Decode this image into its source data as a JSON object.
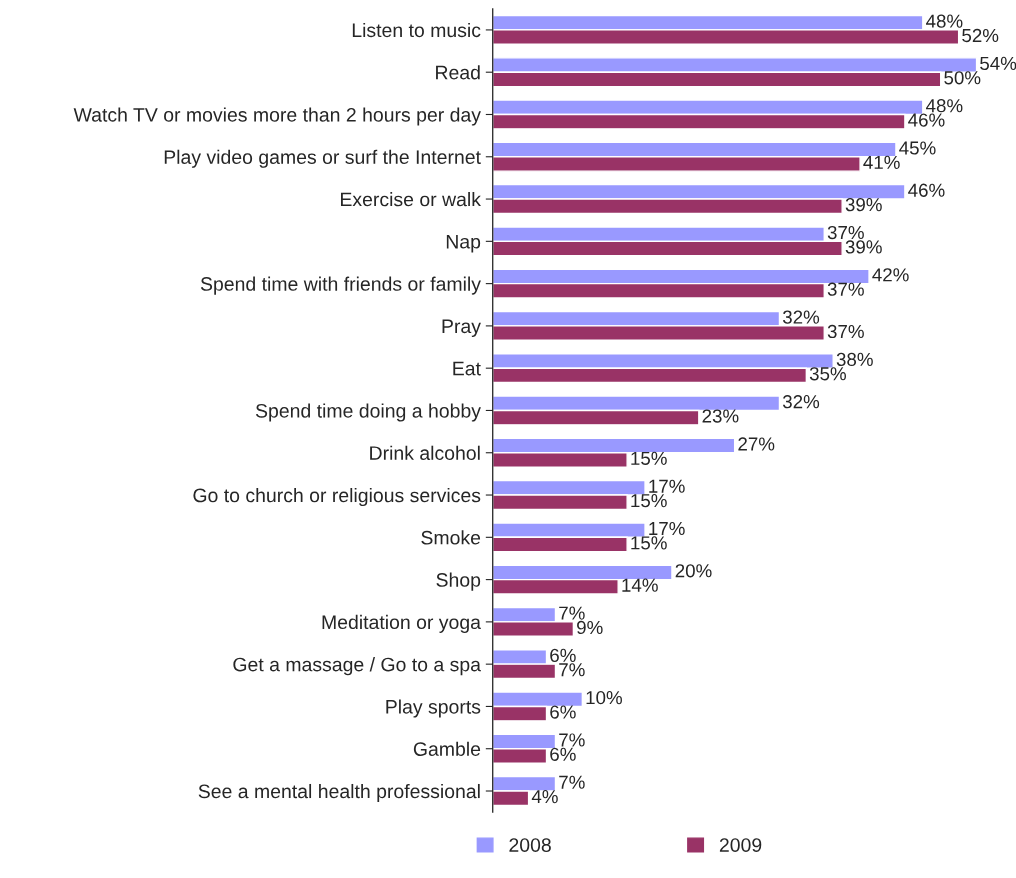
{
  "chart_data": {
    "type": "bar",
    "orientation": "horizontal",
    "categories": [
      "Listen to music",
      "Read",
      "Watch TV or movies more than 2 hours per day",
      "Play video games or surf the Internet",
      "Exercise or walk",
      "Nap",
      "Spend time with friends or family",
      "Pray",
      "Eat",
      "Spend time doing a hobby",
      "Drink alcohol",
      "Go to church or religious services",
      "Smoke",
      "Shop",
      "Meditation or yoga",
      "Get a massage / Go to a spa",
      "Play sports",
      "Gamble",
      "See a mental health professional"
    ],
    "series": [
      {
        "name": "2008",
        "color": "#9999ff",
        "values": [
          48,
          54,
          48,
          45,
          46,
          37,
          42,
          32,
          38,
          32,
          27,
          17,
          17,
          20,
          7,
          6,
          10,
          7,
          7
        ],
        "value_labels": [
          "48%",
          "54%",
          "48%",
          "45%",
          "46%",
          "37%",
          "42%",
          "32%",
          "38%",
          "32%",
          "27%",
          "17%",
          "17%",
          "20%",
          "7%",
          "6%",
          "10%",
          "7%",
          "7%"
        ]
      },
      {
        "name": "2009",
        "color": "#993366",
        "values": [
          52,
          50,
          46,
          41,
          39,
          39,
          37,
          37,
          35,
          23,
          15,
          15,
          15,
          14,
          9,
          7,
          6,
          6,
          4
        ],
        "value_labels": [
          "52%",
          "50%",
          "46%",
          "41%",
          "39%",
          "39%",
          "37%",
          "37%",
          "35%",
          "23%",
          "15%",
          "15%",
          "15%",
          "14%",
          "9%",
          "7%",
          "6%",
          "6%",
          "4%"
        ]
      }
    ],
    "legend": "bottom",
    "grid": false,
    "tick_labels": "y"
  }
}
